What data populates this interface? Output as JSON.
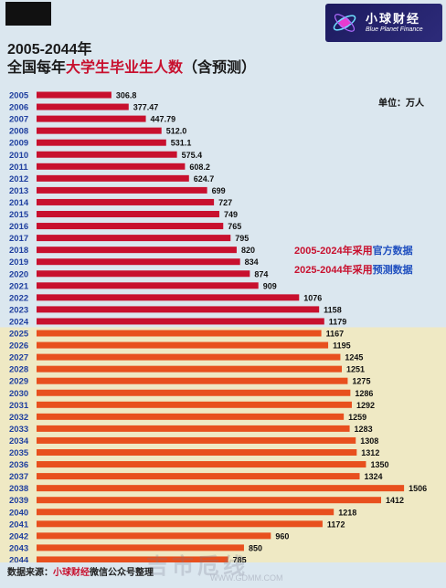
{
  "header": {
    "title_line1": "2005-2044年",
    "title_line2_a": "全国每年",
    "title_line2_b": "大学生毕业生人数",
    "title_line2_c": "（含预测）"
  },
  "logo": {
    "name_cn": "小球财经",
    "name_en": "Blue Planet Finance",
    "icon": "planet-logo-icon"
  },
  "unit_label": "单位：万人",
  "notes": {
    "official_prefix": "2005-2024年采用",
    "official_key": "官方数据",
    "forecast_prefix": "2025-2044年采用",
    "forecast_key": "预测数据"
  },
  "source": {
    "prefix": "数据来源：",
    "name": "小球财经",
    "suffix": "微信公众号整理"
  },
  "watermark": {
    "text": "吉市卮线",
    "sub": "WWW.GDMM.COM"
  },
  "colors": {
    "official_bar": "#c8102e",
    "forecast_bar": "#e8501e",
    "official_bg": "#dbe7ef",
    "forecast_bg": "#efe9c4",
    "year_label": "#1f3f9f"
  },
  "chart_data": {
    "type": "bar",
    "orientation": "horizontal",
    "categories": [
      "2005",
      "2006",
      "2007",
      "2008",
      "2009",
      "2010",
      "2011",
      "2012",
      "2013",
      "2014",
      "2015",
      "2016",
      "2017",
      "2018",
      "2019",
      "2020",
      "2021",
      "2022",
      "2023",
      "2024",
      "2025",
      "2026",
      "2027",
      "2028",
      "2029",
      "2030",
      "2031",
      "2032",
      "2033",
      "2034",
      "2035",
      "2036",
      "2037",
      "2038",
      "2039",
      "2040",
      "2041",
      "2042",
      "2043",
      "2044"
    ],
    "values": [
      306.8,
      377.47,
      447.79,
      512.0,
      531.1,
      575.4,
      608.2,
      624.7,
      699,
      727,
      749,
      765,
      795,
      820,
      834,
      874,
      909,
      1076,
      1158,
      1179,
      1167,
      1195,
      1245,
      1251,
      1275,
      1286,
      1292,
      1259,
      1283,
      1308,
      1312,
      1350,
      1324,
      1506,
      1412,
      1218,
      1172,
      960,
      850,
      785
    ],
    "value_labels": [
      "306.8",
      "377.47",
      "447.79",
      "512.0",
      "531.1",
      "575.4",
      "608.2",
      "624.7",
      "699",
      "727",
      "749",
      "765",
      "795",
      "820",
      "834",
      "874",
      "909",
      "1076",
      "1158",
      "1179",
      "1167",
      "1195",
      "1245",
      "1251",
      "1275",
      "1286",
      "1292",
      "1259",
      "1283",
      "1308",
      "1312",
      "1350",
      "1324",
      "1506",
      "1412",
      "1218",
      "1172",
      "960",
      "850",
      "785"
    ],
    "forecast_start_index": 20
  }
}
